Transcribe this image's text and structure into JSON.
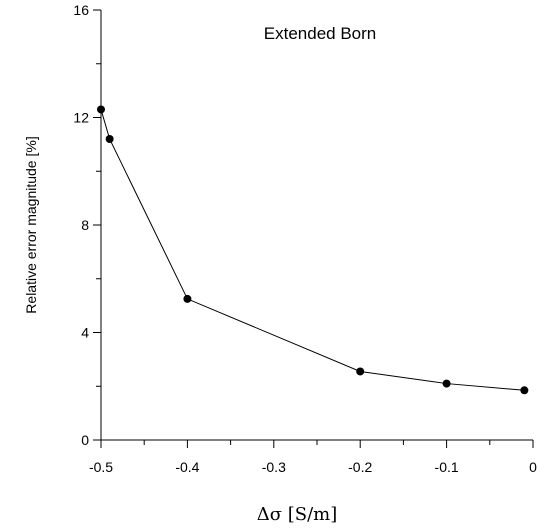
{
  "chart_data": {
    "type": "line",
    "title": "Extended Born",
    "xlabel": "Δσ [S/m]",
    "ylabel": "Relative error magnitude [%]",
    "xlim": [
      -0.5,
      0
    ],
    "ylim": [
      0,
      16
    ],
    "x_ticks": [
      -0.5,
      -0.4,
      -0.3,
      -0.2,
      -0.1,
      0
    ],
    "x_tick_labels": [
      "-0.5",
      "-0.4",
      "-0.3",
      "-0.2",
      "-0.1",
      "0"
    ],
    "y_ticks": [
      0,
      4,
      8,
      12,
      16
    ],
    "y_tick_labels": [
      "0",
      "4",
      "8",
      "12",
      "16"
    ],
    "grid": false,
    "marker": "filled-circle",
    "color": "#000000",
    "series": [
      {
        "x": [
          -0.5,
          -0.49,
          -0.4,
          -0.2,
          -0.1,
          -0.01
        ],
        "y": [
          12.3,
          11.2,
          5.25,
          2.55,
          2.1,
          1.85
        ]
      }
    ]
  }
}
